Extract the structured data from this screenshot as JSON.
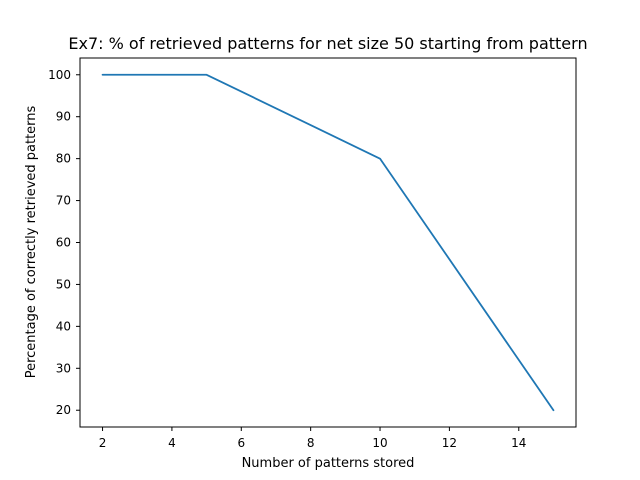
{
  "chart_data": {
    "type": "line",
    "title": "Ex7: % of retrieved patterns for net size 50 starting from pattern",
    "xlabel": "Number of patterns stored",
    "ylabel": "Percentage of correctly retrieved patterns",
    "xlim": [
      1.35,
      15.65
    ],
    "ylim": [
      16,
      104
    ],
    "xticks": [
      2,
      4,
      6,
      8,
      10,
      12,
      14
    ],
    "yticks": [
      20,
      30,
      40,
      50,
      60,
      70,
      80,
      90,
      100
    ],
    "grid": false,
    "series": [
      {
        "x": [
          2,
          5,
          10,
          15
        ],
        "y": [
          100,
          100,
          80,
          20
        ],
        "color": "#1f77b4"
      }
    ]
  }
}
